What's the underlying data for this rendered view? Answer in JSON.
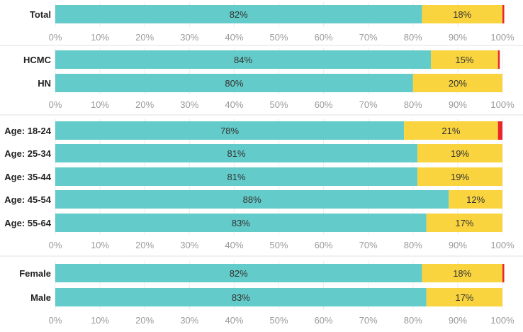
{
  "chart_data": {
    "type": "bar",
    "orientation": "horizontal",
    "stacked": true,
    "xlim": [
      0,
      100
    ],
    "ticks": [
      "0%",
      "10%",
      "20%",
      "30%",
      "40%",
      "50%",
      "60%",
      "70%",
      "80%",
      "90%",
      "100%"
    ],
    "grid": true,
    "legend": "none",
    "colors": {
      "segment_1": "#63cbc9",
      "segment_2": "#f9d43f",
      "segment_3": "#e8272a"
    },
    "panels": [
      {
        "rows": [
          {
            "label": "Total",
            "values": [
              82,
              18,
              0.4
            ],
            "labels": [
              "82%",
              "18%",
              ""
            ]
          }
        ]
      },
      {
        "rows": [
          {
            "label": "HCMC",
            "values": [
              84,
              15,
              0.4
            ],
            "labels": [
              "84%",
              "15%",
              ""
            ]
          },
          {
            "label": "HN",
            "values": [
              80,
              20,
              0
            ],
            "labels": [
              "80%",
              "20%",
              ""
            ]
          }
        ]
      },
      {
        "rows": [
          {
            "label": "Age: 18-24",
            "values": [
              78,
              21,
              1
            ],
            "labels": [
              "78%",
              "21%",
              ""
            ]
          },
          {
            "label": "Age: 25-34",
            "values": [
              81,
              19,
              0
            ],
            "labels": [
              "81%",
              "19%",
              ""
            ]
          },
          {
            "label": "Age: 35-44",
            "values": [
              81,
              19,
              0
            ],
            "labels": [
              "81%",
              "19%",
              ""
            ]
          },
          {
            "label": "Age: 45-54",
            "values": [
              88,
              12,
              0
            ],
            "labels": [
              "88%",
              "12%",
              ""
            ]
          },
          {
            "label": "Age: 55-64",
            "values": [
              83,
              17,
              0
            ],
            "labels": [
              "83%",
              "17%",
              ""
            ]
          }
        ]
      },
      {
        "rows": [
          {
            "label": "Female",
            "values": [
              82,
              18,
              0.4
            ],
            "labels": [
              "82%",
              "18%",
              ""
            ]
          },
          {
            "label": "Male",
            "values": [
              83,
              17,
              0
            ],
            "labels": [
              "83%",
              "17%",
              ""
            ]
          }
        ]
      }
    ]
  }
}
